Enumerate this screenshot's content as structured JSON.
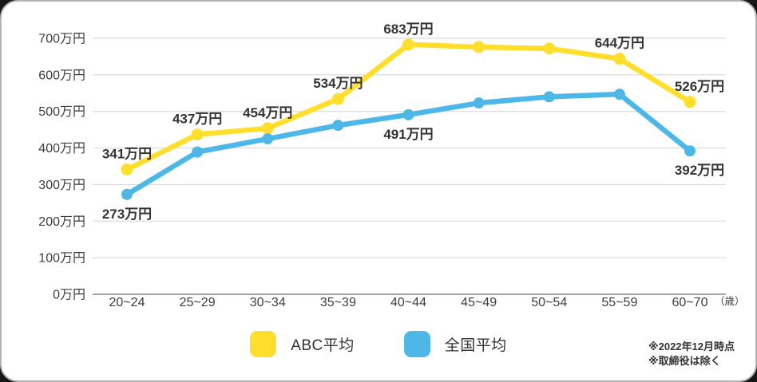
{
  "colors": {
    "abc_yellow": "#FFDF2B",
    "national_blue": "#4DB8E8",
    "gridline": "#dcdcdc",
    "axis_line": "#a3a3a3",
    "text_dark": "#333333"
  },
  "chart_data": {
    "type": "line",
    "title": "",
    "categories": [
      "20~24",
      "25~29",
      "30~34",
      "35~39",
      "40~44",
      "45~49",
      "50~54",
      "55~59",
      "60~70"
    ],
    "x_unit_label": "（歳）",
    "ylim": [
      0,
      700
    ],
    "grid": true,
    "legend_position": "bottom",
    "y_ticks": [
      {
        "value": 700,
        "label": "700万円"
      },
      {
        "value": 600,
        "label": "600万円"
      },
      {
        "value": 500,
        "label": "500万円"
      },
      {
        "value": 400,
        "label": "400万円"
      },
      {
        "value": 300,
        "label": "300万円"
      },
      {
        "value": 200,
        "label": "200万円"
      },
      {
        "value": 100,
        "label": "100万円"
      },
      {
        "value": 0,
        "label": "0万円"
      }
    ],
    "series": [
      {
        "name": "ABC平均",
        "color": "#FFDF2B",
        "values": [
          341,
          437,
          454,
          534,
          683,
          676,
          672,
          644,
          526
        ],
        "point_labels": [
          {
            "index": 0,
            "text": "341万円",
            "position": "above"
          },
          {
            "index": 1,
            "text": "437万円",
            "position": "above"
          },
          {
            "index": 2,
            "text": "454万円",
            "position": "above"
          },
          {
            "index": 3,
            "text": "534万円",
            "position": "above"
          },
          {
            "index": 4,
            "text": "683万円",
            "position": "above"
          },
          {
            "index": 7,
            "text": "644万円",
            "position": "above"
          },
          {
            "index": 8,
            "text": "526万円",
            "position": "above",
            "dx": 12
          }
        ]
      },
      {
        "name": "全国平均",
        "color": "#4DB8E8",
        "values": [
          273,
          389,
          425,
          462,
          491,
          523,
          540,
          547,
          392
        ],
        "point_labels": [
          {
            "index": 0,
            "text": "273万円",
            "position": "below"
          },
          {
            "index": 4,
            "text": "491万円",
            "position": "below"
          },
          {
            "index": 8,
            "text": "392万円",
            "position": "below",
            "dx": 12
          }
        ]
      }
    ]
  },
  "footnotes": [
    "※2022年12月時点",
    "※取締役は除く"
  ]
}
